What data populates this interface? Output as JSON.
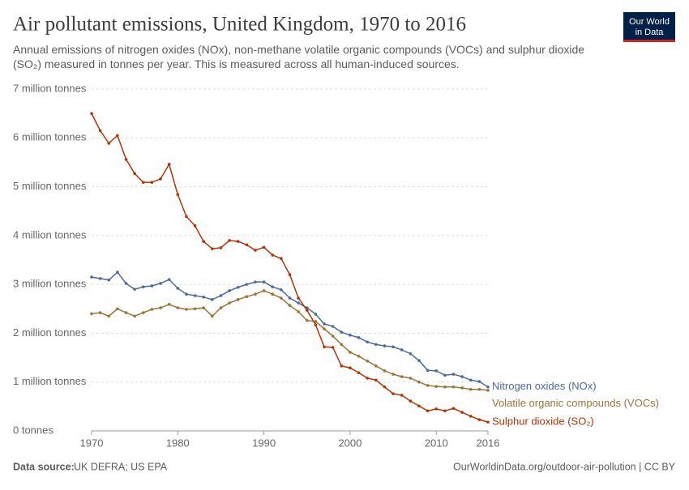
{
  "chart_data": {
    "type": "line",
    "title": "Air pollutant emissions, United Kingdom, 1970 to 2016",
    "subtitle": "Annual emissions of nitrogen oxides (NOx), non-methane volatile organic compounds (VOCs) and sulphur dioxide (SO₂) measured in tonnes per year. This is measured across all human-induced sources.",
    "source_label": "Data source:",
    "source": "UK DEFRA; US EPA",
    "footer_right": "OurWorldinData.org/outdoor-air-pollution | CC BY",
    "logo": [
      "Our World",
      "in Data"
    ],
    "x": [
      1970,
      1971,
      1972,
      1973,
      1974,
      1975,
      1976,
      1977,
      1978,
      1979,
      1980,
      1981,
      1982,
      1983,
      1984,
      1985,
      1986,
      1987,
      1988,
      1989,
      1990,
      1991,
      1992,
      1993,
      1994,
      1995,
      1996,
      1997,
      1998,
      1999,
      2000,
      2001,
      2002,
      2003,
      2004,
      2005,
      2006,
      2007,
      2008,
      2009,
      2010,
      2011,
      2012,
      2013,
      2014,
      2015,
      2016
    ],
    "xlim": [
      1970,
      2016
    ],
    "xticks": [
      1970,
      1980,
      1990,
      2000,
      2010,
      2016
    ],
    "ylim": [
      0,
      7000000
    ],
    "yticks": [
      {
        "value": 0,
        "label": "0 tonnes"
      },
      {
        "value": 1000000,
        "label": "1 million tonnes"
      },
      {
        "value": 2000000,
        "label": "2 million tonnes"
      },
      {
        "value": 3000000,
        "label": "3 million tonnes"
      },
      {
        "value": 4000000,
        "label": "4 million tonnes"
      },
      {
        "value": 5000000,
        "label": "5 million tonnes"
      },
      {
        "value": 6000000,
        "label": "6 million tonnes"
      },
      {
        "value": 7000000,
        "label": "7 million tonnes"
      }
    ],
    "grid": true,
    "series": [
      {
        "name": "Nitrogen oxides (NOx)",
        "color": "#4c6a9c",
        "values": [
          3150000,
          3120000,
          3090000,
          3250000,
          3020000,
          2900000,
          2950000,
          2970000,
          3020000,
          3100000,
          2920000,
          2800000,
          2770000,
          2740000,
          2690000,
          2770000,
          2870000,
          2940000,
          3000000,
          3050000,
          3050000,
          2950000,
          2890000,
          2720000,
          2620000,
          2520000,
          2390000,
          2190000,
          2140000,
          2020000,
          1960000,
          1910000,
          1820000,
          1770000,
          1740000,
          1720000,
          1660000,
          1580000,
          1440000,
          1240000,
          1230000,
          1140000,
          1160000,
          1110000,
          1040000,
          1010000,
          900000
        ]
      },
      {
        "name": "Volatile organic compounds (VOCs)",
        "color": "#9a7536",
        "values": [
          2400000,
          2420000,
          2350000,
          2500000,
          2420000,
          2350000,
          2420000,
          2490000,
          2520000,
          2590000,
          2520000,
          2490000,
          2500000,
          2520000,
          2350000,
          2520000,
          2620000,
          2690000,
          2750000,
          2800000,
          2870000,
          2800000,
          2720000,
          2570000,
          2440000,
          2260000,
          2240000,
          2090000,
          1940000,
          1770000,
          1610000,
          1530000,
          1430000,
          1330000,
          1230000,
          1160000,
          1110000,
          1080000,
          1000000,
          930000,
          910000,
          900000,
          900000,
          880000,
          850000,
          850000,
          830000
        ]
      },
      {
        "name": "Sulphur dioxide (SO₂)",
        "color": "#b13507",
        "values": [
          6500000,
          6150000,
          5890000,
          6050000,
          5560000,
          5270000,
          5090000,
          5090000,
          5160000,
          5460000,
          4840000,
          4390000,
          4200000,
          3880000,
          3730000,
          3750000,
          3900000,
          3880000,
          3810000,
          3700000,
          3760000,
          3600000,
          3530000,
          3200000,
          2720000,
          2470000,
          2170000,
          1720000,
          1710000,
          1330000,
          1290000,
          1190000,
          1080000,
          1040000,
          900000,
          760000,
          730000,
          610000,
          510000,
          410000,
          450000,
          410000,
          460000,
          380000,
          300000,
          230000,
          180000
        ]
      }
    ]
  }
}
